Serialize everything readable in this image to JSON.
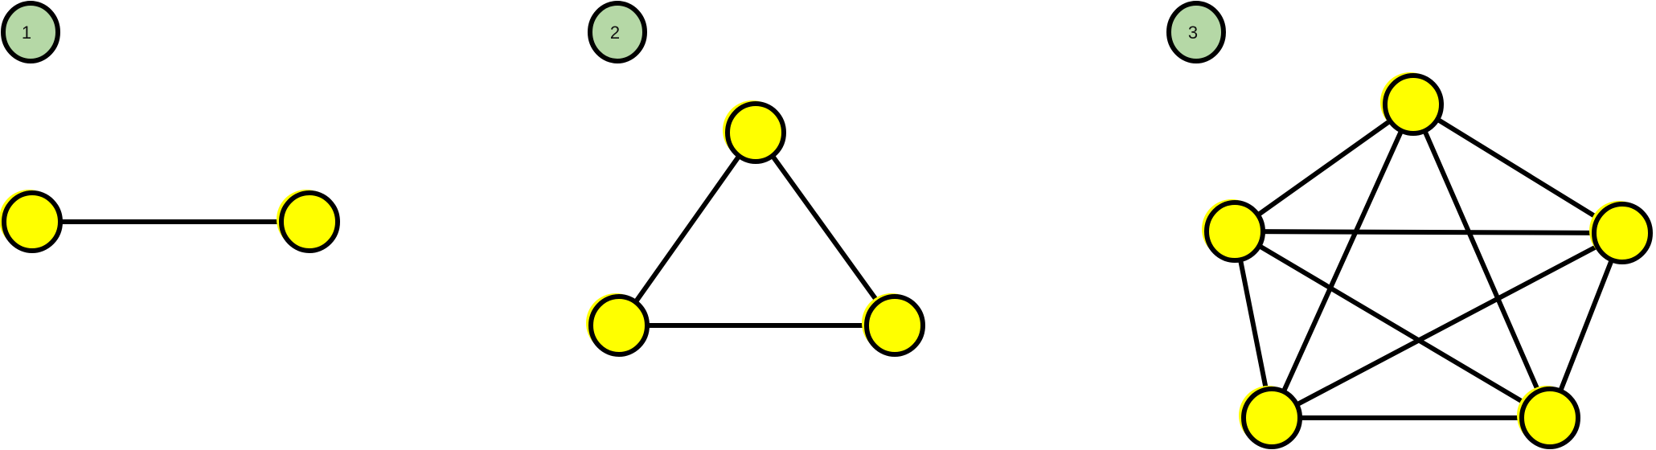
{
  "colors": {
    "background": "#ffffff",
    "stroke": "#000000",
    "node_fill": "#ffff00",
    "badge_fill": "#b5d8a6"
  },
  "panels": [
    {
      "label": "1",
      "node_count": 2,
      "edges": [
        [
          0,
          1
        ]
      ]
    },
    {
      "label": "2",
      "node_count": 3,
      "edges": [
        [
          0,
          1
        ],
        [
          1,
          2
        ],
        [
          2,
          0
        ]
      ]
    },
    {
      "label": "3",
      "node_count": 5,
      "edges": [
        [
          0,
          1
        ],
        [
          0,
          2
        ],
        [
          0,
          3
        ],
        [
          0,
          4
        ],
        [
          1,
          2
        ],
        [
          1,
          3
        ],
        [
          1,
          4
        ],
        [
          2,
          3
        ],
        [
          2,
          4
        ],
        [
          3,
          4
        ]
      ]
    }
  ]
}
